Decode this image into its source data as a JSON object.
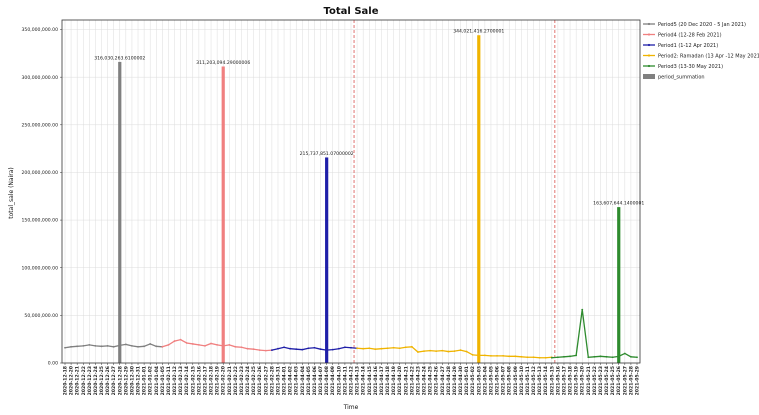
{
  "chart_data": {
    "type": "line",
    "title": "Total Sale",
    "xlabel": "Time",
    "ylabel": "total_sale (Naira)",
    "ylim": [
      0,
      360000000
    ],
    "y_ticks": [
      {
        "value": 0,
        "label": "0.00"
      },
      {
        "value": 50000000,
        "label": "50,000,000.00"
      },
      {
        "value": 100000000,
        "label": "100,000,000.00"
      },
      {
        "value": 150000000,
        "label": "150,000,000.00"
      },
      {
        "value": 200000000,
        "label": "200,000,000.00"
      },
      {
        "value": 250000000,
        "label": "250,000,000.00"
      },
      {
        "value": 300000000,
        "label": "300,000,000.00"
      },
      {
        "value": 350000000,
        "label": "350,000,000.00"
      }
    ],
    "grid": true,
    "legend_position": "right",
    "x_tick_labels": [
      "2020-12-18",
      "2020-12-20",
      "2020-12-21",
      "2020-12-22",
      "2020-12-23",
      "2020-12-24",
      "2020-12-25",
      "2020-12-26",
      "2020-12-27",
      "2020-12-28",
      "2020-12-29",
      "2020-12-30",
      "2020-12-31",
      "2021-01-01",
      "2021-01-02",
      "2021-01-04",
      "2021-01-05",
      "2021-02-11",
      "2021-02-12",
      "2021-02-13",
      "2021-02-14",
      "2021-02-15",
      "2021-02-16",
      "2021-02-17",
      "2021-02-18",
      "2021-02-19",
      "2021-02-20",
      "2021-02-21",
      "2021-02-22",
      "2021-02-23",
      "2021-02-24",
      "2021-02-25",
      "2021-02-26",
      "2021-02-27",
      "2021-02-28",
      "2021-03-31",
      "2021-04-01",
      "2021-04-02",
      "2021-04-03",
      "2021-04-04",
      "2021-04-05",
      "2021-04-06",
      "2021-04-07",
      "2021-04-08",
      "2021-04-09",
      "2021-04-10",
      "2021-04-11",
      "2021-04-12",
      "2021-04-13",
      "2021-04-14",
      "2021-04-15",
      "2021-04-16",
      "2021-04-17",
      "2021-04-18",
      "2021-04-19",
      "2021-04-20",
      "2021-04-21",
      "2021-04-22",
      "2021-04-23",
      "2021-04-24",
      "2021-04-25",
      "2021-04-26",
      "2021-04-27",
      "2021-04-28",
      "2021-04-29",
      "2021-04-30",
      "2021-05-01",
      "2021-05-02",
      "2021-05-03",
      "2021-05-04",
      "2021-05-05",
      "2021-05-06",
      "2021-05-07",
      "2021-05-08",
      "2021-05-09",
      "2021-05-10",
      "2021-05-11",
      "2021-05-12",
      "2021-05-13",
      "2021-05-14",
      "2021-05-15",
      "2021-05-16",
      "2021-05-17",
      "2021-05-18",
      "2021-05-19",
      "2021-05-20",
      "2021-05-21",
      "2021-05-22",
      "2021-05-23",
      "2021-05-24",
      "2021-05-25",
      "2021-05-26",
      "2021-05-27",
      "2021-05-28",
      "2021-05-29"
    ],
    "vertical_markers": [
      {
        "x_index": 47.5,
        "style": "dashed",
        "color": "#d9534f"
      },
      {
        "x_index": 80.5,
        "style": "dashed",
        "color": "#d9534f"
      }
    ],
    "series": [
      {
        "name": "Period5 (20 Dec 2020 - 5 Jan 2021)",
        "color": "#808080",
        "x_start": 0,
        "values": [
          16000000,
          17000000,
          17500000,
          18000000,
          19000000,
          18000000,
          17500000,
          18000000,
          17000000,
          18500000,
          19500000,
          18000000,
          17000000,
          17500000,
          20000000,
          17500000,
          17000000
        ]
      },
      {
        "name": "Period4 (12-28 Feb 2021)",
        "color": "#f08080",
        "x_start": 16,
        "values": [
          17000000,
          19000000,
          23000000,
          24500000,
          21000000,
          20000000,
          19000000,
          18000000,
          20500000,
          19000000,
          18000000,
          19000000,
          17000000,
          16500000,
          15000000,
          14500000,
          13500000,
          13000000,
          13500000
        ]
      },
      {
        "name": "Period1 (1-12 Apr 2021)",
        "color": "#1f1fa8",
        "x_start": 34,
        "values": [
          13500000,
          15000000,
          16500000,
          15000000,
          14500000,
          14000000,
          15500000,
          16000000,
          14500000,
          13500000,
          14000000,
          15000000,
          16500000,
          16000000,
          15500000
        ]
      },
      {
        "name": "Period2: Ramadan (13 Apr -12 May 2021)",
        "color": "#f0b400",
        "x_start": 48,
        "values": [
          15500000,
          15000000,
          15500000,
          14500000,
          15000000,
          15500000,
          16000000,
          15500000,
          16500000,
          17000000,
          11500000,
          12500000,
          13000000,
          12500000,
          13000000,
          12000000,
          12500000,
          13500000,
          12000000,
          8500000,
          8000000,
          8000000,
          7500000,
          7500000,
          7500000,
          7000000,
          7000000,
          6500000,
          6000000,
          6000000,
          5500000,
          5500000,
          6000000
        ]
      },
      {
        "name": "Period3 (13-30 May 2021)",
        "color": "#2e8b2e",
        "x_start": 80,
        "values": [
          5500000,
          6000000,
          6500000,
          7000000,
          8000000,
          56000000,
          6000000,
          6500000,
          7000000,
          6500000,
          6000000,
          7000000,
          10000000,
          6500000,
          6000000
        ]
      }
    ],
    "spikes": [
      {
        "name": "period_summation",
        "x_index": 9,
        "value": 316030263.61,
        "label": "316,030,263.6100002",
        "color": "#808080"
      },
      {
        "name": "period_summation",
        "x_index": 26,
        "value": 311203094.29,
        "label": "311,203,094.29000006",
        "color": "#f08080"
      },
      {
        "name": "period_summation",
        "x_index": 43,
        "value": 215737851.07,
        "label": "215,737,851.07000002",
        "color": "#1f1fa8"
      },
      {
        "name": "period_summation",
        "x_index": 68,
        "value": 344021416.27,
        "label": "344,021,416.2700001",
        "color": "#f0b400"
      },
      {
        "name": "period_summation",
        "x_index": 91,
        "value": 163607644.14,
        "label": "163,607,644.1400001",
        "color": "#2e8b2e"
      }
    ],
    "legend": [
      {
        "label": "Period5 (20 Dec 2020 - 5 Jan 2021)",
        "color": "#808080",
        "kind": "line"
      },
      {
        "label": "Period4 (12-28 Feb 2021)",
        "color": "#f08080",
        "kind": "line"
      },
      {
        "label": "Period1 (1-12 Apr 2021)",
        "color": "#1f1fa8",
        "kind": "line"
      },
      {
        "label": "Period2: Ramadan (13 Apr -12 May 2021)",
        "color": "#f0b400",
        "kind": "line"
      },
      {
        "label": "Period3 (13-30 May 2021)",
        "color": "#2e8b2e",
        "kind": "line"
      },
      {
        "label": "period_summation",
        "color": "#808080",
        "kind": "patch"
      }
    ]
  }
}
